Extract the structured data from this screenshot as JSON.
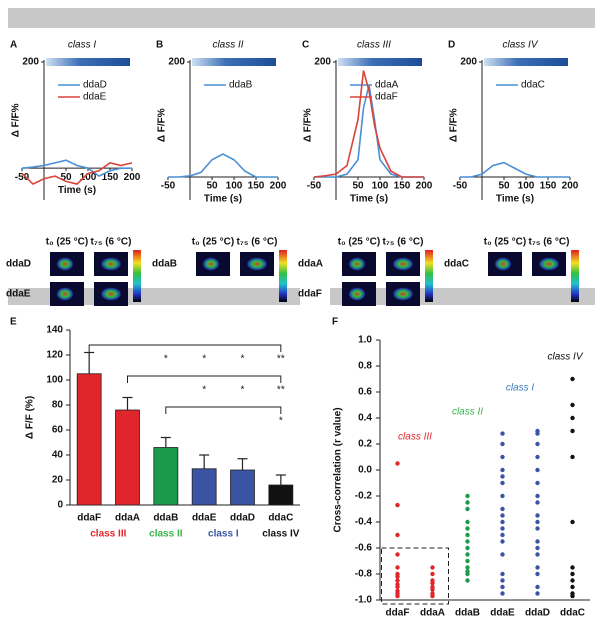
{
  "chart_data": [
    {
      "type": "line",
      "panel": "A",
      "title": "class I",
      "xlabel": "Time (s)",
      "ylabel": "Δ F/F%",
      "x": [
        -50,
        -25,
        0,
        25,
        50,
        75,
        100,
        125,
        150,
        175,
        200
      ],
      "xlim": [
        -50,
        200
      ],
      "xticks": [
        -50,
        50,
        100,
        150,
        200
      ],
      "ylim": [
        -60,
        200
      ],
      "yticks": [
        200
      ],
      "series": [
        {
          "name": "ddaD",
          "color": "#4a8fd6",
          "values": [
            0,
            2,
            5,
            10,
            15,
            5,
            0,
            -15,
            -5,
            0,
            0
          ]
        },
        {
          "name": "ddaE",
          "color": "#d8443a",
          "values": [
            -10,
            -30,
            -20,
            -15,
            -25,
            -30,
            -10,
            -5,
            10,
            5,
            10
          ]
        }
      ],
      "image_headers": [
        "t₀ (25 °C)",
        "t₇₅ (6 °C)"
      ],
      "image_rows": [
        "ddaD",
        "ddaE"
      ]
    },
    {
      "type": "line",
      "panel": "B",
      "title": "class II",
      "xlabel": "Time (s)",
      "ylabel": "Δ F/F%",
      "x": [
        -50,
        -25,
        0,
        25,
        50,
        75,
        100,
        125,
        150,
        175,
        200
      ],
      "xlim": [
        -50,
        200
      ],
      "xticks": [
        -50,
        50,
        100,
        150,
        200
      ],
      "ylim": [
        -40,
        200
      ],
      "yticks": [
        200
      ],
      "series": [
        {
          "name": "ddaB",
          "color": "#4a8fd6",
          "values": [
            0,
            0,
            2,
            8,
            30,
            40,
            30,
            10,
            0,
            0,
            0
          ]
        }
      ],
      "image_headers": [
        "t₀ (25 °C)",
        "t₇₅ (6 °C)"
      ],
      "image_rows": [
        "ddaB"
      ]
    },
    {
      "type": "line",
      "panel": "C",
      "title": "class III",
      "xlabel": "Time (s)",
      "ylabel": "Δ F/F%",
      "x": [
        -50,
        -25,
        0,
        25,
        50,
        62.5,
        75,
        87.5,
        100,
        125,
        150,
        175,
        200
      ],
      "xlim": [
        -50,
        200
      ],
      "xticks": [
        -50,
        50,
        100,
        150,
        200
      ],
      "ylim": [
        -40,
        200
      ],
      "yticks": [
        200
      ],
      "series": [
        {
          "name": "ddaA",
          "color": "#4a8fd6",
          "values": [
            0,
            0,
            0,
            5,
            30,
            120,
            160,
            100,
            30,
            5,
            0,
            0,
            0
          ]
        },
        {
          "name": "ddaF",
          "color": "#d8443a",
          "values": [
            0,
            2,
            5,
            20,
            100,
            185,
            150,
            90,
            50,
            10,
            0,
            0,
            0
          ]
        }
      ],
      "image_headers": [
        "t₀ (25 °C)",
        "t₇₅ (6 °C)"
      ],
      "image_rows": [
        "ddaA",
        "ddaF"
      ]
    },
    {
      "type": "line",
      "panel": "D",
      "title": "class IV",
      "xlabel": "Time (s)",
      "ylabel": "Δ F/F%",
      "x": [
        -50,
        -25,
        0,
        25,
        50,
        75,
        100,
        125,
        150,
        175,
        200
      ],
      "xlim": [
        -50,
        200
      ],
      "xticks": [
        -50,
        50,
        100,
        150,
        200
      ],
      "ylim": [
        -40,
        200
      ],
      "yticks": [
        200
      ],
      "series": [
        {
          "name": "ddaC",
          "color": "#4a8fd6",
          "values": [
            0,
            0,
            5,
            20,
            25,
            15,
            5,
            0,
            0,
            0,
            0
          ]
        }
      ],
      "image_headers": [
        "t₀ (25 °C)",
        "t₇₅ (6 °C)"
      ],
      "image_rows": [
        "ddaC"
      ]
    },
    {
      "type": "bar",
      "panel": "E",
      "ylabel": "Δ F/F (%)",
      "categories": [
        "ddaF",
        "ddaA",
        "ddaB",
        "ddaE",
        "ddaD",
        "ddaC"
      ],
      "values": [
        105,
        76,
        46,
        29,
        28,
        16
      ],
      "errors": [
        17,
        10,
        8,
        11,
        9,
        8
      ],
      "colors": [
        "#e0262a",
        "#e0262a",
        "#1a9a4a",
        "#3a54a4",
        "#3a54a4",
        "#111111"
      ],
      "ylim": [
        0,
        140
      ],
      "yticks": [
        0,
        20,
        40,
        60,
        80,
        100,
        120,
        140
      ],
      "groups": [
        {
          "name": "class III",
          "color": "#e0262a",
          "categories": [
            "ddaF",
            "ddaA"
          ]
        },
        {
          "name": "class II",
          "color": "#39b54a",
          "categories": [
            "ddaB"
          ]
        },
        {
          "name": "class I",
          "color": "#3a54a4",
          "categories": [
            "ddaE",
            "ddaD"
          ]
        },
        {
          "name": "class IV",
          "color": "#111111",
          "categories": [
            "ddaC"
          ]
        }
      ],
      "significance": [
        {
          "from": "ddaF",
          "marks": [
            null,
            null,
            "*",
            "*",
            "*",
            "**"
          ]
        },
        {
          "from": "ddaA",
          "marks": [
            null,
            null,
            null,
            "*",
            "*",
            "**"
          ]
        },
        {
          "from": "ddaB",
          "marks": [
            null,
            null,
            null,
            null,
            null,
            "*"
          ]
        }
      ]
    },
    {
      "type": "strip",
      "panel": "F",
      "ylabel": "Cross-correlation (r value)",
      "ylim": [
        -1,
        1
      ],
      "yticks": [
        {
          "value": -1,
          "label": "-1.0"
        },
        -0.8,
        -0.6,
        -0.4,
        -0.2,
        {
          "value": 0,
          "label": "0.0"
        },
        0.2,
        0.4,
        0.6,
        0.8,
        {
          "value": 1,
          "label": "1.0"
        }
      ],
      "series": [
        {
          "name": "ddaF",
          "color": "#e0262a",
          "values": [
            0.05,
            -0.27,
            -0.5,
            -0.65,
            -0.75,
            -0.8,
            -0.82,
            -0.85,
            -0.88,
            -0.9,
            -0.93,
            -0.95,
            -0.97
          ]
        },
        {
          "name": "ddaA",
          "color": "#e0262a",
          "values": [
            -0.75,
            -0.8,
            -0.85,
            -0.87,
            -0.9,
            -0.92,
            -0.95,
            -0.97
          ]
        },
        {
          "name": "ddaB",
          "color": "#1a9a4a",
          "values": [
            -0.2,
            -0.25,
            -0.3,
            -0.4,
            -0.45,
            -0.5,
            -0.55,
            -0.6,
            -0.65,
            -0.7,
            -0.75,
            -0.78,
            -0.8,
            -0.85
          ]
        },
        {
          "name": "ddaE",
          "color": "#3a54a4",
          "values": [
            0.28,
            0.2,
            0.1,
            0,
            -0.05,
            -0.1,
            -0.2,
            -0.3,
            -0.35,
            -0.4,
            -0.45,
            -0.5,
            -0.55,
            -0.65,
            -0.8,
            -0.85,
            -0.9,
            -0.95
          ]
        },
        {
          "name": "ddaD",
          "color": "#3a54a4",
          "values": [
            0.3,
            0.28,
            0.2,
            0.1,
            0,
            -0.1,
            -0.2,
            -0.25,
            -0.35,
            -0.4,
            -0.45,
            -0.55,
            -0.6,
            -0.65,
            -0.75,
            -0.8,
            -0.9,
            -0.95
          ]
        },
        {
          "name": "ddaC",
          "color": "#111111",
          "values": [
            0.7,
            0.5,
            0.4,
            0.3,
            0.1,
            -0.4,
            -0.75,
            -0.8,
            -0.85,
            -0.9,
            -0.95,
            -0.97
          ]
        }
      ],
      "groups": [
        {
          "name": "class III",
          "color": "#e0262a",
          "categories": [
            "ddaF",
            "ddaA"
          ]
        },
        {
          "name": "class II",
          "color": "#39b54a",
          "categories": [
            "ddaB"
          ]
        },
        {
          "name": "class I",
          "color": "#3a7cc4",
          "categories": [
            "ddaE",
            "ddaD"
          ]
        },
        {
          "name": "class IV",
          "color": "#111111",
          "categories": [
            "ddaC"
          ]
        }
      ],
      "highlight": {
        "categories": [
          "ddaF",
          "ddaA"
        ],
        "yrange": [
          -1,
          -0.6
        ]
      }
    }
  ]
}
